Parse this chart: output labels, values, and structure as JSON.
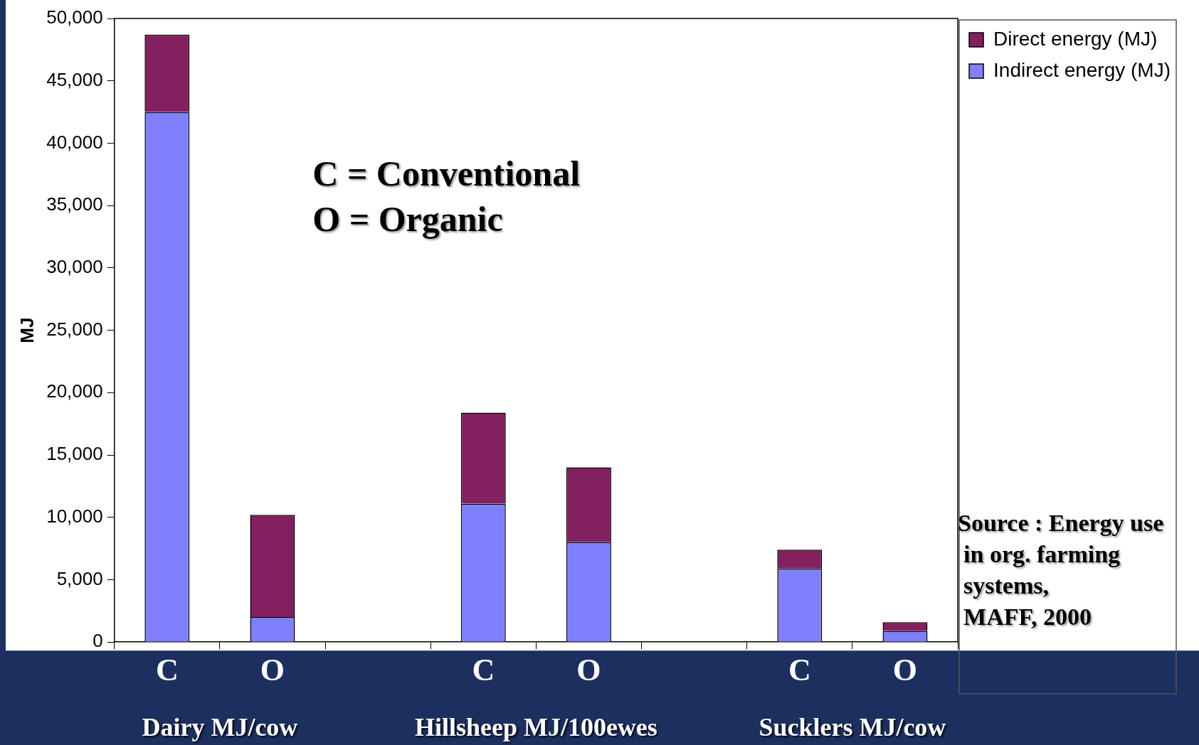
{
  "chart_data": {
    "type": "bar",
    "stacked": true,
    "ylabel": "MJ",
    "categories": [
      "C",
      "O",
      null,
      "C",
      "O",
      null,
      "C",
      "O"
    ],
    "series": [
      {
        "name": "Indirect energy (MJ)",
        "color": "#8080ff",
        "values": [
          42500,
          2000,
          null,
          11100,
          8000,
          null,
          5900,
          900
        ]
      },
      {
        "name": "Direct energy (MJ)",
        "color": "#832060",
        "values": [
          6200,
          8200,
          null,
          7300,
          6000,
          null,
          1500,
          700
        ]
      }
    ],
    "ylim": [
      0,
      50000
    ],
    "yticks": [
      {
        "value": 0,
        "label": "0"
      },
      {
        "value": 5000,
        "label": "5,000"
      },
      {
        "value": 10000,
        "label": "10,000"
      },
      {
        "value": 15000,
        "label": "15,000"
      },
      {
        "value": 20000,
        "label": "20,000"
      },
      {
        "value": 25000,
        "label": "25,000"
      },
      {
        "value": 30000,
        "label": "30,000"
      },
      {
        "value": 35000,
        "label": "35,000"
      },
      {
        "value": 40000,
        "label": "40,000"
      },
      {
        "value": 45000,
        "label": "45,000"
      },
      {
        "value": 50000,
        "label": "50,000"
      }
    ],
    "grid": false,
    "legend": "top right",
    "annotations": [
      "Dairy MJ/cow",
      "Hillsheep MJ/100ewes",
      "Sucklers MJ/cow",
      "C = Conventional",
      "O = Organic",
      "Source : Energy use",
      "in org. farming",
      "systems,",
      "MAFF, 2000"
    ]
  }
}
